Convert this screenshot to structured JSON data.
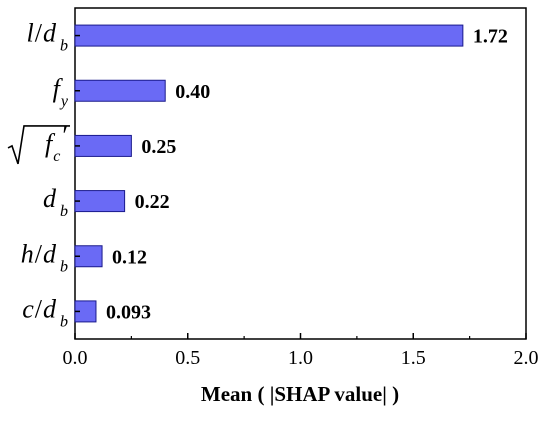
{
  "chart_data": {
    "type": "bar",
    "orientation": "horizontal",
    "categories": [
      "l/d_b",
      "f_y",
      "sqrt(f_c')",
      "d_b",
      "h/d_b",
      "c/d_b"
    ],
    "category_display": [
      {
        "main": "l",
        "sep": "/",
        "second": "d",
        "sub": "b"
      },
      {
        "main": "f",
        "sep": "",
        "second": "",
        "sub": "y"
      },
      {
        "main": "f",
        "sep": "",
        "second": "",
        "sub": "c",
        "prime": "′",
        "root": true
      },
      {
        "main": "d",
        "sep": "",
        "second": "",
        "sub": "b"
      },
      {
        "main": "h",
        "sep": "/",
        "second": "d",
        "sub": "b"
      },
      {
        "main": "c",
        "sep": "/",
        "second": "d",
        "sub": "b"
      }
    ],
    "values": [
      1.72,
      0.4,
      0.25,
      0.22,
      0.12,
      0.093
    ],
    "value_labels": [
      "1.72",
      "0.40",
      "0.25",
      "0.22",
      "0.12",
      "0.093"
    ],
    "xlabel": "Mean ( |SHAP value| )",
    "xlim": [
      0.0,
      2.0
    ],
    "xticks": [
      0.0,
      0.5,
      1.0,
      1.5,
      2.0
    ],
    "xtick_labels": [
      "0.0",
      "0.5",
      "1.0",
      "1.5",
      "2.0"
    ],
    "grid": false,
    "bar_color": "#6a6af5",
    "bar_edge_color": "#1a1a8c"
  }
}
